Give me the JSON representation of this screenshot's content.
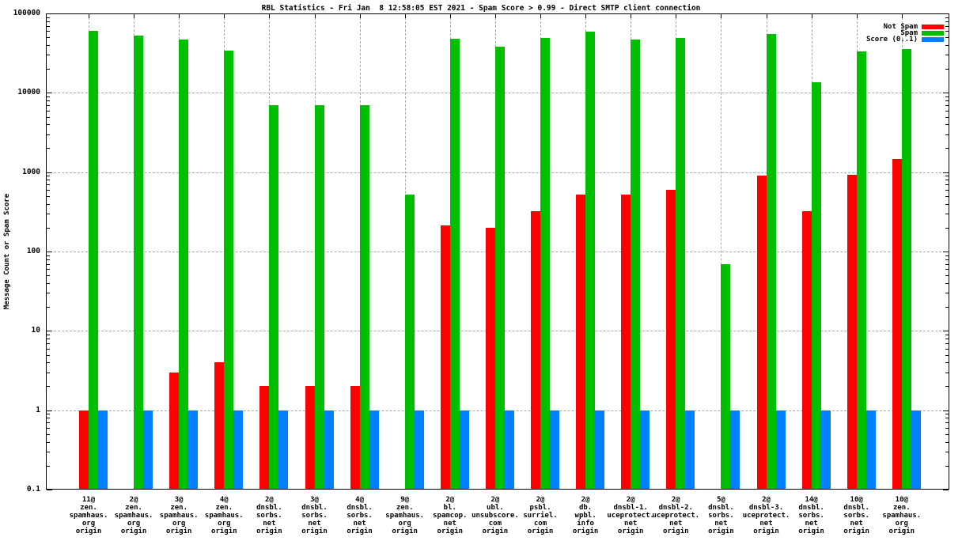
{
  "chart_data": {
    "type": "bar",
    "title": "RBL Statistics - Fri Jan  8 12:58:05 EST 2021 - Spam Score > 0.99 - Direct SMTP client connection",
    "ylabel": "Message Count or Spam Score",
    "yscale": "log",
    "ylim": [
      0.1,
      100000
    ],
    "grid": true,
    "legend_position": "top-right",
    "yticks": [
      {
        "label": "100000",
        "value": 100000
      },
      {
        "label": "10000",
        "value": 10000
      },
      {
        "label": "1000",
        "value": 1000
      },
      {
        "label": "100",
        "value": 100
      },
      {
        "label": "10",
        "value": 10
      },
      {
        "label": "1",
        "value": 1
      },
      {
        "label": "0.1",
        "value": 0.1
      }
    ],
    "legend": [
      {
        "name": "Not Spam",
        "color": "#ff0000"
      },
      {
        "name": "Spam",
        "color": "#00bf00"
      },
      {
        "name": "Score (0..1)",
        "color": "#0080ff"
      }
    ],
    "categories": [
      {
        "lines": [
          "11@",
          "zen.",
          "spamhaus.",
          "org",
          "origin"
        ]
      },
      {
        "lines": [
          "2@",
          "zen.",
          "spamhaus.",
          "org",
          "origin"
        ]
      },
      {
        "lines": [
          "3@",
          "zen.",
          "spamhaus.",
          "org",
          "origin"
        ]
      },
      {
        "lines": [
          "4@",
          "zen.",
          "spamhaus.",
          "org",
          "origin"
        ]
      },
      {
        "lines": [
          "2@",
          "dnsbl.",
          "sorbs.",
          "net",
          "origin"
        ]
      },
      {
        "lines": [
          "3@",
          "dnsbl.",
          "sorbs.",
          "net",
          "origin"
        ]
      },
      {
        "lines": [
          "4@",
          "dnsbl.",
          "sorbs.",
          "net",
          "origin"
        ]
      },
      {
        "lines": [
          "9@",
          "zen.",
          "spamhaus.",
          "org",
          "origin"
        ]
      },
      {
        "lines": [
          "2@",
          "bl.",
          "spamcop.",
          "net",
          "origin"
        ]
      },
      {
        "lines": [
          "2@",
          "ubl.",
          "unsubscore.",
          "com",
          "origin"
        ]
      },
      {
        "lines": [
          "2@",
          "psbl.",
          "surriel.",
          "com",
          "origin"
        ]
      },
      {
        "lines": [
          "2@",
          "db.",
          "wpbl.",
          "info",
          "origin"
        ]
      },
      {
        "lines": [
          "2@",
          "dnsbl-1.",
          "uceprotect.",
          "net",
          "origin"
        ]
      },
      {
        "lines": [
          "2@",
          "dnsbl-2.",
          "uceprotect.",
          "net",
          "origin"
        ]
      },
      {
        "lines": [
          "5@",
          "dnsbl.",
          "sorbs.",
          "net",
          "origin"
        ]
      },
      {
        "lines": [
          "2@",
          "dnsbl-3.",
          "uceprotect.",
          "net",
          "origin"
        ]
      },
      {
        "lines": [
          "14@",
          "dnsbl.",
          "sorbs.",
          "net",
          "origin"
        ]
      },
      {
        "lines": [
          "10@",
          "dnsbl.",
          "sorbs.",
          "net",
          "origin"
        ]
      },
      {
        "lines": [
          "10@",
          "zen.",
          "spamhaus.",
          "org",
          "origin"
        ]
      }
    ],
    "series": [
      {
        "name": "Not Spam",
        "color": "#ff0000",
        "values": [
          1,
          null,
          3,
          4,
          2,
          2,
          2,
          null,
          215,
          200,
          325,
          520,
          520,
          600,
          null,
          900,
          320,
          930,
          1450
        ]
      },
      {
        "name": "Spam",
        "color": "#00bf00",
        "values": [
          60000,
          53000,
          47000,
          34000,
          7000,
          7000,
          7000,
          520,
          48000,
          38000,
          49000,
          59000,
          47000,
          49000,
          70,
          55000,
          13500,
          33000,
          36000
        ]
      },
      {
        "name": "Score (0..1)",
        "color": "#0080ff",
        "values": [
          1,
          1,
          1,
          1,
          1,
          1,
          1,
          1,
          1,
          1,
          1,
          1,
          1,
          1,
          1,
          1,
          1,
          1,
          1
        ]
      }
    ]
  }
}
